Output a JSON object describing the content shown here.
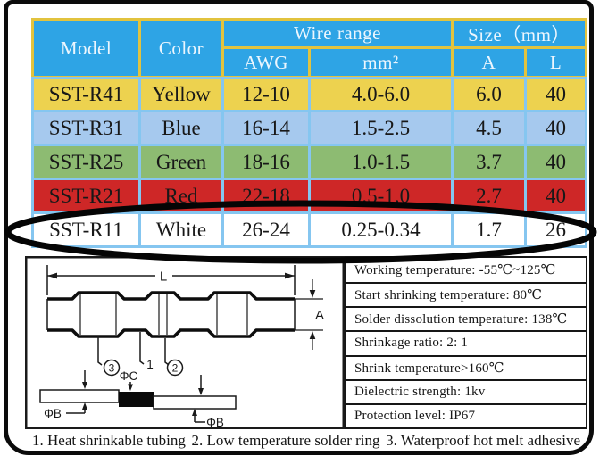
{
  "colors": {
    "header_bg": "#2ea4e5",
    "header_text": "#ecf6fe",
    "header_grid": "#e2c33e",
    "data_grid": "#85c6f0",
    "body_text": "#181818",
    "frame": "#0b0b0b",
    "highlight_ellipse": "#050505"
  },
  "table": {
    "headers": {
      "model": "Model",
      "color": "Color",
      "wire_range": "Wire range",
      "awg": "AWG",
      "mm2": "mm²",
      "size": "Size（mm）",
      "a": "A",
      "l": "L"
    },
    "rows": [
      {
        "model": "SST-R41",
        "color": "Yellow",
        "awg": "12-10",
        "mm2": "4.0-6.0",
        "a": "6.0",
        "l": "40",
        "bg": "#edd24f",
        "highlighted": false
      },
      {
        "model": "SST-R31",
        "color": "Blue",
        "awg": "16-14",
        "mm2": "1.5-2.5",
        "a": "4.5",
        "l": "40",
        "bg": "#a6c9ee",
        "highlighted": false
      },
      {
        "model": "SST-R25",
        "color": "Green",
        "awg": "18-16",
        "mm2": "1.0-1.5",
        "a": "3.7",
        "l": "40",
        "bg": "#8dbb72",
        "highlighted": false
      },
      {
        "model": "SST-R21",
        "color": "Red",
        "awg": "22-18",
        "mm2": "0.5-1.0",
        "a": "2.7",
        "l": "40",
        "bg": "#ce2727",
        "highlighted": false
      },
      {
        "model": "SST-R11",
        "color": "White",
        "awg": "26-24",
        "mm2": "0.25-0.34",
        "a": "1.7",
        "l": "26",
        "bg": "#ffffff",
        "highlighted": true
      }
    ]
  },
  "diagram": {
    "length_label": "L",
    "height_label": "A",
    "solder_dia_label": "ΦC",
    "wire_dia_label_left": "ΦB",
    "wire_dia_label_right": "ΦB",
    "part_1": "1",
    "part_2": "2",
    "part_3": "3"
  },
  "specs": {
    "items": [
      "Working temperature: -55℃~125℃",
      "Start shrinking temperature: 80℃",
      "Solder dissolution temperature: 138℃",
      "Shrinkage ratio: 2: 1",
      "Shrink temperature>160℃",
      "Dielectric strength: 1kv",
      "Protection level: IP67"
    ]
  },
  "legend": {
    "items": [
      "1. Heat shrinkable tubing",
      "2. Low temperature solder ring",
      "3. Waterproof hot melt adhesive"
    ]
  }
}
